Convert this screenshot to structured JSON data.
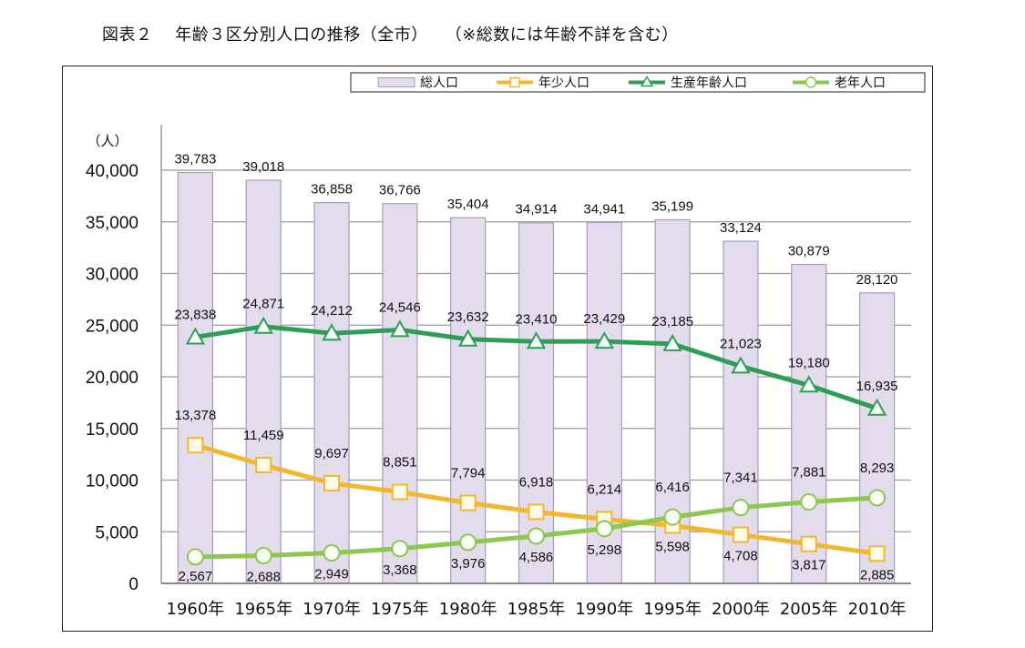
{
  "title": "図表２　 年齢３区分別人口の推移（全市）　　（※総数には年齢不詳を含む）",
  "chart_data": {
    "type": "bar+line",
    "title": "図表２ 年齢３区分別人口の推移（全市）",
    "subtitle": "（※総数には年齢不詳を含む）",
    "ylabel": "（人）",
    "xlabel": "",
    "ylim": [
      0,
      40000
    ],
    "yticks": [
      0,
      5000,
      10000,
      15000,
      20000,
      25000,
      30000,
      35000,
      40000
    ],
    "ytick_labels": [
      "0",
      "5,000",
      "10,000",
      "15,000",
      "20,000",
      "25,000",
      "30,000",
      "35,000",
      "40,000"
    ],
    "grid": true,
    "legend_position": "top",
    "categories": [
      "1960年",
      "1965年",
      "1970年",
      "1975年",
      "1980年",
      "1985年",
      "1990年",
      "1995年",
      "2000年",
      "2005年",
      "2010年"
    ],
    "series": [
      {
        "name": "総人口",
        "kind": "bar",
        "marker": "none",
        "color": "#e2dcec",
        "edge": "#a99bbf",
        "values": [
          39783,
          39018,
          36858,
          36766,
          35404,
          34914,
          34941,
          35199,
          33124,
          30879,
          28120
        ],
        "labels": [
          "39,783",
          "39,018",
          "36,858",
          "36,766",
          "35,404",
          "34,914",
          "34,941",
          "35,199",
          "33,124",
          "30,879",
          "28,120"
        ]
      },
      {
        "name": "年少人口",
        "kind": "line",
        "marker": "square",
        "color": "#f2b731",
        "values": [
          13378,
          11459,
          9697,
          8851,
          7794,
          6918,
          6214,
          5598,
          4708,
          3817,
          2885
        ],
        "labels": [
          "13,378",
          "11,459",
          "9,697",
          "8,851",
          "7,794",
          "6,918",
          "6,214",
          "5,598",
          "4,708",
          "3,817",
          "2,885"
        ]
      },
      {
        "name": "生産年齢人口",
        "kind": "line",
        "marker": "triangle",
        "color": "#2e9e57",
        "values": [
          23838,
          24871,
          24212,
          24546,
          23632,
          23410,
          23429,
          23185,
          21023,
          19180,
          16935
        ],
        "labels": [
          "23,838",
          "24,871",
          "24,212",
          "24,546",
          "23,632",
          "23,410",
          "23,429",
          "23,185",
          "21,023",
          "19,180",
          "16,935"
        ]
      },
      {
        "name": "老年人口",
        "kind": "line",
        "marker": "circle",
        "color": "#8cc751",
        "values": [
          2567,
          2688,
          2949,
          3368,
          3976,
          4586,
          5298,
          6416,
          7341,
          7881,
          8293
        ],
        "labels": [
          "2,567",
          "2,688",
          "2,949",
          "3,368",
          "3,976",
          "4,586",
          "5,298",
          "6,416",
          "7,341",
          "7,881",
          "8,293"
        ]
      }
    ]
  }
}
